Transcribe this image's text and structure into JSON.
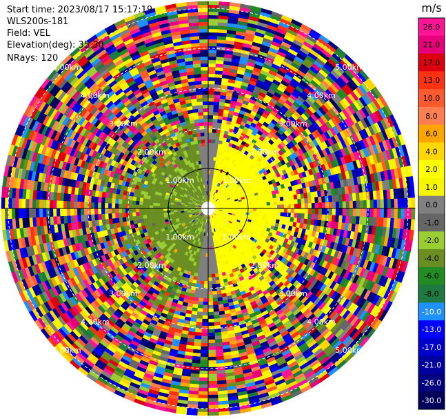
{
  "info": {
    "start_time": "Start time: 2023/08/17 15:17:19",
    "instrument": "WLS200s-181",
    "field": "Field: VEL",
    "elevation": "Elevation(deg): 35.30",
    "nrays": "NRays: 120"
  },
  "colorbar": {
    "unit": "m/s",
    "ticks": [
      "26.0",
      "21.0",
      "17.0",
      "13.0",
      "10.0",
      "8.0",
      "6.0",
      "4.0",
      "2.0",
      "1.0",
      "0.0",
      "-1.0",
      "-2.0",
      "-4.0",
      "-6.0",
      "-8.0",
      "-10.0",
      "-13.0",
      "-17.0",
      "-21.0",
      "-26.0",
      "-30.0"
    ],
    "colors": [
      "#ff1493",
      "#e8007a",
      "#dd0010",
      "#ff3311",
      "#ff5a2e",
      "#ff7f50",
      "#ffa500",
      "#ffd700",
      "#ffff00",
      "#f5f500",
      "#808080",
      "#666666",
      "#9acd32",
      "#6b8e23",
      "#228b22",
      "#1e7a40",
      "#1e90ff",
      "#0000ff",
      "#0000cd",
      "#0000a0",
      "#000080",
      "#00005a"
    ]
  },
  "ppi": {
    "range_rings": [
      {
        "label": "1.00km"
      },
      {
        "label": "2.00km"
      },
      {
        "label": "3.00km"
      },
      {
        "label": "4.00km"
      },
      {
        "label": "5.00km"
      }
    ],
    "colors": {
      "positive": "#ffff00",
      "negative": "#6b8e23",
      "zero": "#808080",
      "ring_line": "#ffffff",
      "axis_line": "#000000"
    }
  }
}
